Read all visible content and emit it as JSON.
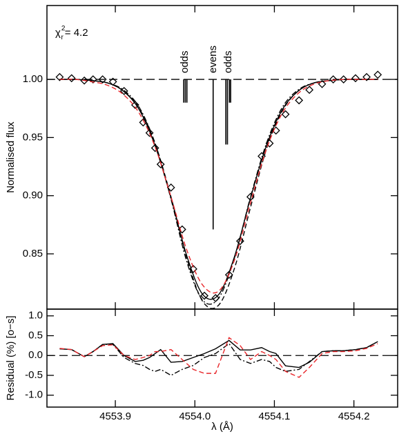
{
  "chart_data": [
    {
      "type": "line",
      "ylabel": "Normalised flux",
      "annotation": {
        "symbol": "χ",
        "superscript": "2",
        "subscript": "r",
        "text": "= 4.2"
      },
      "xlim": [
        4553.814,
        4554.255
      ],
      "ylim": [
        0.8025,
        1.0635
      ],
      "xticks": [
        4553.9,
        4554,
        4554.1,
        4554.2
      ],
      "yticks": [
        {
          "value": 1.0,
          "label": "1.00"
        },
        {
          "value": 0.95,
          "label": "0.95"
        },
        {
          "value": 0.9,
          "label": "0.90"
        },
        {
          "value": 0.85,
          "label": "0.85"
        }
      ],
      "hline": 1.0,
      "components": {
        "x": [
          4553.986,
          4553.988,
          4553.99,
          4554.023,
          4554.039,
          4554.041,
          4554.0435,
          4554.045
        ],
        "values": [
          0.98,
          0.98,
          0.98,
          0.871,
          0.944,
          0.944,
          0.98,
          0.98
        ],
        "color": "#000000"
      },
      "component_labels": [
        "odds",
        "evens",
        "odds"
      ],
      "series": [
        {
          "style": "diamond",
          "color": "#000000",
          "x": [
            4553.83,
            4553.845,
            4553.861,
            4553.872,
            4553.884,
            4553.897,
            4553.911,
            4553.925,
            4553.935,
            4553.943,
            4553.95,
            4553.957,
            4553.97,
            4553.984,
            4553.998,
            4554.012,
            4554.026,
            4554.043,
            4554.057,
            4554.07,
            4554.084,
            4554.094,
            4554.102,
            4554.114,
            4554.131,
            4554.144,
            4554.16,
            4554.174,
            4554.187,
            4554.202,
            4554.216,
            4554.23
          ],
          "values": [
            1.002,
            1.001,
            0.999,
            1.0,
            1.0,
            0.998,
            0.99,
            0.978,
            0.963,
            0.954,
            0.941,
            0.927,
            0.907,
            0.871,
            0.837,
            0.814,
            0.812,
            0.832,
            0.861,
            0.899,
            0.934,
            0.945,
            0.956,
            0.97,
            0.982,
            0.991,
            0.996,
            1.0,
            1.0,
            1.001,
            1.002,
            1.004
          ]
        },
        {
          "style": "solid",
          "color": "#000000",
          "x": [
            4553.83,
            4553.85,
            4553.87,
            4553.89,
            4553.91,
            4553.93,
            4553.95,
            4553.97,
            4553.99,
            4554.01,
            4554.03,
            4554.05,
            4554.07,
            4554.09,
            4554.11,
            4554.13,
            4554.15,
            4554.17,
            4554.19,
            4554.21,
            4554.23
          ],
          "values": [
            1.0,
            1.0,
            0.999,
            0.997,
            0.99,
            0.974,
            0.943,
            0.898,
            0.848,
            0.815,
            0.815,
            0.848,
            0.898,
            0.943,
            0.974,
            0.99,
            0.997,
            0.999,
            1.0,
            1.0,
            1.0
          ]
        },
        {
          "style": "dashdot",
          "color": "#000000",
          "x": [
            4553.83,
            4553.85,
            4553.87,
            4553.89,
            4553.91,
            4553.93,
            4553.95,
            4553.97,
            4553.99,
            4554.01,
            4554.03,
            4554.05,
            4554.07,
            4554.09,
            4554.11,
            4554.13,
            4554.15,
            4554.17,
            4554.19,
            4554.21,
            4554.23
          ],
          "values": [
            1.0,
            1.0,
            0.999,
            0.997,
            0.991,
            0.976,
            0.945,
            0.897,
            0.843,
            0.81,
            0.812,
            0.847,
            0.899,
            0.945,
            0.976,
            0.991,
            0.997,
            0.999,
            1.0,
            1.0,
            1.0
          ]
        },
        {
          "style": "dashed",
          "color": "#000000",
          "x": [
            4553.83,
            4553.85,
            4553.87,
            4553.89,
            4553.91,
            4553.93,
            4553.95,
            4553.97,
            4553.99,
            4554.01,
            4554.03,
            4554.05,
            4554.07,
            4554.09,
            4554.11,
            4554.13,
            4554.15,
            4554.17,
            4554.19,
            4554.21,
            4554.23
          ],
          "values": [
            1.0,
            1.0,
            0.999,
            0.997,
            0.99,
            0.975,
            0.945,
            0.899,
            0.846,
            0.809,
            0.806,
            0.838,
            0.89,
            0.94,
            0.973,
            0.99,
            0.997,
            0.999,
            1.0,
            1.0,
            1.0
          ]
        },
        {
          "style": "dashed",
          "color": "#e8262a",
          "x": [
            4553.83,
            4553.85,
            4553.87,
            4553.89,
            4553.91,
            4553.93,
            4553.95,
            4553.97,
            4553.99,
            4554.01,
            4554.03,
            4554.05,
            4554.07,
            4554.09,
            4554.11,
            4554.13,
            4554.15,
            4554.17,
            4554.19,
            4554.21,
            4554.23
          ],
          "values": [
            1.0,
            1.0,
            0.998,
            0.995,
            0.987,
            0.971,
            0.942,
            0.899,
            0.853,
            0.823,
            0.818,
            0.845,
            0.894,
            0.94,
            0.971,
            0.988,
            0.996,
            0.999,
            1.0,
            1.0,
            1.0
          ]
        }
      ]
    },
    {
      "type": "line",
      "xlabel": "λ (Å)",
      "ylabel": "Residual (%) [o−s]",
      "xlim": [
        4553.814,
        4554.255
      ],
      "ylim": [
        -1.3,
        1.17
      ],
      "xticks": [
        4553.9,
        {
          "value": 4554,
          "label": "4554.0"
        },
        4554.1,
        4554.2
      ],
      "yticks": [
        {
          "value": 1.0,
          "label": "1.0"
        },
        {
          "value": 0.5,
          "label": "0.5"
        },
        {
          "value": 0.0,
          "label": "0.0"
        },
        {
          "value": -0.5,
          "label": "-0.5"
        },
        {
          "value": -1.0,
          "label": "-1.0"
        }
      ],
      "hline": 0.0,
      "series": [
        {
          "style": "solid",
          "color": "#000000",
          "x": [
            4553.83,
            4553.845,
            4553.861,
            4553.872,
            4553.884,
            4553.897,
            4553.911,
            4553.925,
            4553.935,
            4553.943,
            4553.95,
            4553.957,
            4553.97,
            4553.984,
            4553.998,
            4554.012,
            4554.026,
            4554.043,
            4554.057,
            4554.07,
            4554.084,
            4554.094,
            4554.102,
            4554.114,
            4554.131,
            4554.144,
            4554.16,
            4554.174,
            4554.187,
            4554.202,
            4554.216,
            4554.23
          ],
          "values": [
            0.17,
            0.15,
            -0.03,
            0.1,
            0.28,
            0.3,
            0.0,
            -0.15,
            -0.12,
            -0.05,
            0.05,
            0.15,
            -0.17,
            -0.15,
            -0.05,
            0.05,
            0.17,
            0.38,
            0.14,
            0.14,
            0.2,
            0.1,
            0.05,
            -0.26,
            -0.3,
            -0.17,
            0.1,
            0.12,
            0.12,
            0.15,
            0.2,
            0.35
          ]
        },
        {
          "style": "dashdot",
          "color": "#000000",
          "x": [
            4553.83,
            4553.845,
            4553.861,
            4553.872,
            4553.884,
            4553.897,
            4553.911,
            4553.925,
            4553.935,
            4553.943,
            4553.95,
            4553.957,
            4553.97,
            4553.984,
            4553.998,
            4554.012,
            4554.026,
            4554.043,
            4554.057,
            4554.07,
            4554.084,
            4554.094,
            4554.102,
            4554.114,
            4554.131,
            4554.144,
            4554.16,
            4554.174,
            4554.187,
            4554.202,
            4554.216,
            4554.23
          ],
          "values": [
            0.17,
            0.15,
            -0.03,
            0.1,
            0.28,
            0.28,
            -0.05,
            -0.2,
            -0.25,
            -0.35,
            -0.4,
            -0.35,
            -0.5,
            -0.35,
            -0.25,
            -0.05,
            0.05,
            0.3,
            -0.1,
            -0.2,
            -0.1,
            -0.15,
            -0.3,
            -0.4,
            -0.35,
            -0.15,
            0.1,
            0.12,
            0.12,
            0.15,
            0.2,
            0.35
          ]
        },
        {
          "style": "dashed",
          "color": "#e8262a",
          "x": [
            4553.83,
            4553.845,
            4553.861,
            4553.872,
            4553.884,
            4553.897,
            4553.911,
            4553.925,
            4553.935,
            4553.943,
            4553.95,
            4553.957,
            4553.97,
            4553.984,
            4553.998,
            4554.012,
            4554.026,
            4554.043,
            4554.057,
            4554.07,
            4554.084,
            4554.094,
            4554.102,
            4554.114,
            4554.131,
            4554.144,
            4554.16,
            4554.174,
            4554.187,
            4554.202,
            4554.216,
            4554.23
          ],
          "values": [
            0.18,
            0.15,
            -0.03,
            0.1,
            0.25,
            0.27,
            0.0,
            -0.1,
            -0.05,
            0.0,
            0.1,
            0.1,
            0.15,
            -0.1,
            -0.35,
            -0.45,
            -0.45,
            0.45,
            0.25,
            -0.1,
            0.1,
            0.0,
            -0.1,
            -0.4,
            -0.55,
            -0.3,
            0.05,
            0.1,
            0.1,
            0.12,
            0.18,
            0.3
          ]
        }
      ]
    }
  ]
}
